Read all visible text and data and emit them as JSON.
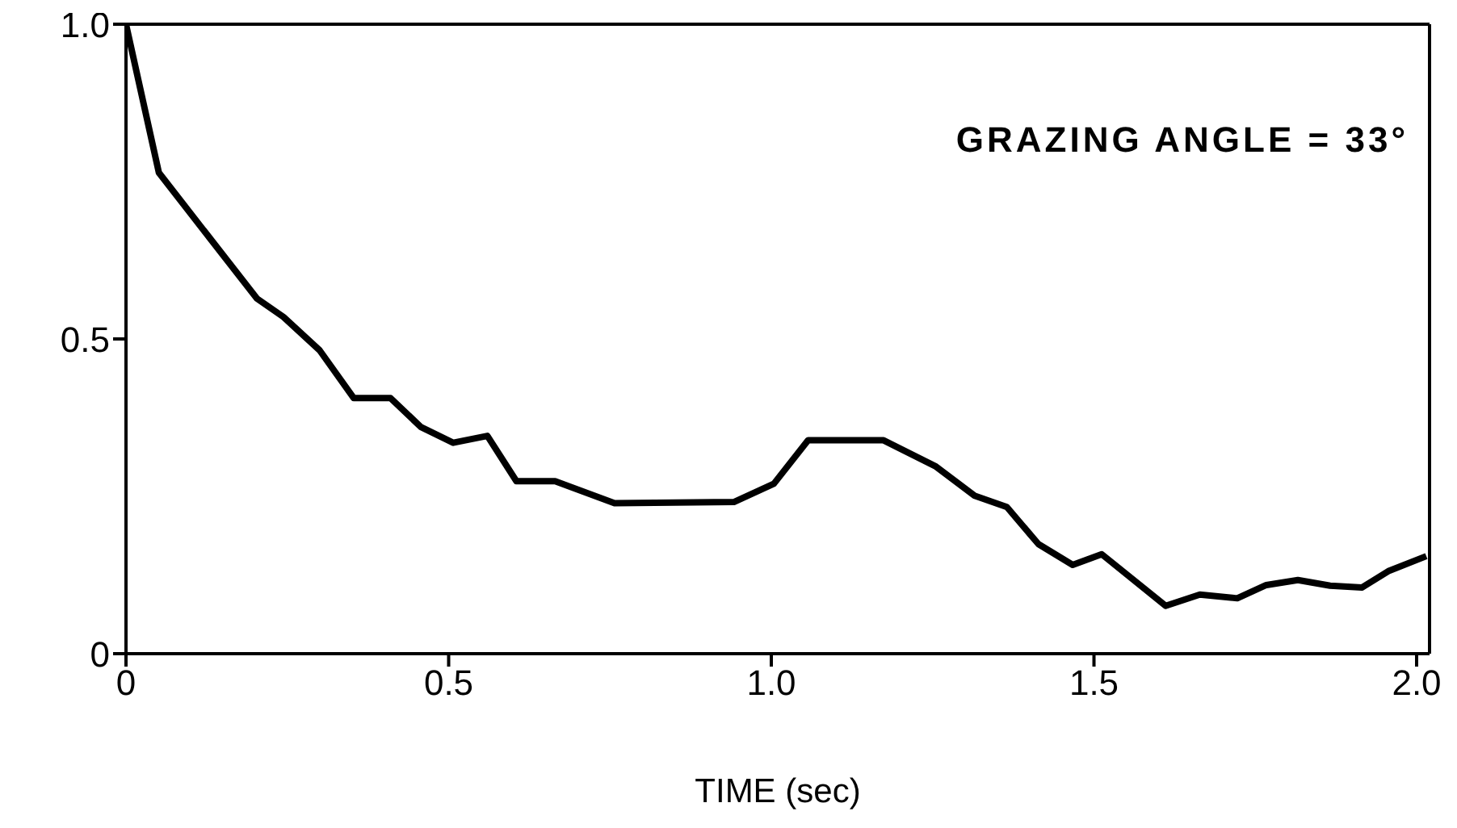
{
  "chart_data": {
    "type": "line",
    "xlabel": "TIME (sec)",
    "annotations": [
      "GRAZING ANGLE = 33°"
    ],
    "x": [
      0,
      0.051,
      0.203,
      0.244,
      0.3,
      0.353,
      0.41,
      0.457,
      0.507,
      0.56,
      0.605,
      0.665,
      0.757,
      0.942,
      1.004,
      1.057,
      1.174,
      1.254,
      1.315,
      1.365,
      1.414,
      1.467,
      1.512,
      1.611,
      1.664,
      1.722,
      1.767,
      1.816,
      1.866,
      1.915,
      1.956,
      2.015
    ],
    "series": [
      {
        "color": "#000000",
        "values": [
          1.0,
          0.764,
          0.564,
          0.535,
          0.482,
          0.406,
          0.406,
          0.36,
          0.335,
          0.346,
          0.274,
          0.274,
          0.239,
          0.241,
          0.27,
          0.339,
          0.339,
          0.298,
          0.251,
          0.233,
          0.174,
          0.141,
          0.158,
          0.076,
          0.094,
          0.088,
          0.109,
          0.117,
          0.108,
          0.105,
          0.131,
          0.155
        ]
      }
    ],
    "xlim": [
      0,
      2.02
    ],
    "xticks": [
      0,
      0.5,
      {
        "value": 1,
        "label": "1.0"
      },
      1.5,
      {
        "value": 2,
        "label": "2.0"
      }
    ],
    "ylim": [
      0,
      1.0
    ],
    "yticks": [
      0,
      0.5,
      {
        "value": 1,
        "label": "1.0"
      }
    ],
    "grid": false,
    "legend": false,
    "marker": "none",
    "line_style": "solid"
  }
}
